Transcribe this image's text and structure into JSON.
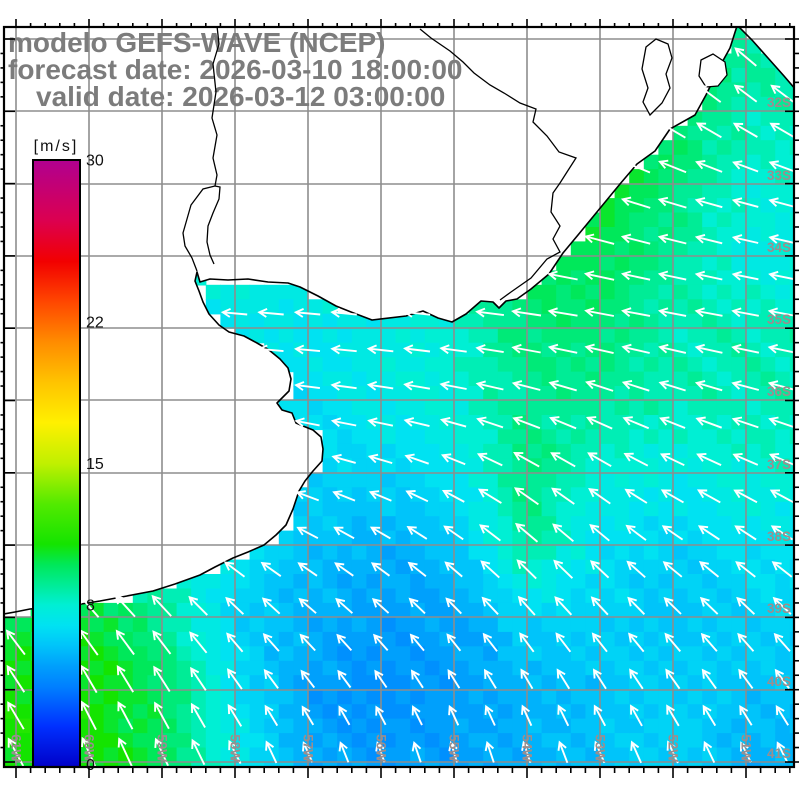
{
  "title": {
    "line1": "modelo GEFS-WAVE (NCEP)",
    "line2": "forecast date: 2026-03-10 18:00:00",
    "line3": "valid date: 2026-03-12 03:00:00"
  },
  "colorbar": {
    "unit": "[m/s]",
    "min": 0,
    "max": 30,
    "tick_labels": [
      {
        "text": "30",
        "value": 30
      },
      {
        "text": "22",
        "value": 22
      },
      {
        "text": "15",
        "value": 15
      },
      {
        "text": "8",
        "value": 8
      },
      {
        "text": "0",
        "value": 0
      }
    ],
    "stops": [
      {
        "v": 0,
        "c": "#0000C8"
      },
      {
        "v": 2,
        "c": "#0030FF"
      },
      {
        "v": 4,
        "c": "#0080FF"
      },
      {
        "v": 5,
        "c": "#00A0FC"
      },
      {
        "v": 6,
        "c": "#00C4FA"
      },
      {
        "v": 7,
        "c": "#00E2F2"
      },
      {
        "v": 8,
        "c": "#00EFD4"
      },
      {
        "v": 9,
        "c": "#00EC96"
      },
      {
        "v": 10,
        "c": "#00E85A"
      },
      {
        "v": 11,
        "c": "#14E400"
      },
      {
        "v": 13,
        "c": "#52EA00"
      },
      {
        "v": 15,
        "c": "#C0F000"
      },
      {
        "v": 17,
        "c": "#FFF000"
      },
      {
        "v": 19,
        "c": "#FFC400"
      },
      {
        "v": 21,
        "c": "#FF8C00"
      },
      {
        "v": 23,
        "c": "#FF4600"
      },
      {
        "v": 25,
        "c": "#F20000"
      },
      {
        "v": 27,
        "c": "#DC0050"
      },
      {
        "v": 30,
        "c": "#B00090"
      }
    ]
  },
  "grid": {
    "lon_lines_x": [
      16,
      89,
      162,
      235,
      308,
      381,
      454,
      527,
      600,
      673,
      746
    ],
    "lon_labels": [
      "61W",
      "60W",
      "59W",
      "58W",
      "57W",
      "56W",
      "55W",
      "54W",
      "53W",
      "52W",
      "51W"
    ],
    "lat_lines_y": [
      39,
      111,
      184,
      256,
      328,
      400,
      473,
      545,
      617,
      690,
      762
    ],
    "lat_labels": [
      "32S",
      "33S",
      "34S",
      "35S",
      "36S",
      "37S",
      "38S",
      "39S",
      "40S",
      "41S"
    ]
  },
  "wind_field": {
    "cols": 11,
    "rows": 11,
    "speeds_ms": [
      [
        10,
        10,
        10,
        10,
        10,
        10,
        9.5,
        9.5,
        10.5,
        10,
        9
      ],
      [
        10,
        10,
        10,
        10,
        10,
        10,
        9.5,
        10,
        11,
        10,
        8.5
      ],
      [
        10,
        10,
        10,
        10,
        10,
        9,
        9.5,
        11,
        10.5,
        9.5,
        8
      ],
      [
        9,
        9,
        8.5,
        8,
        8,
        8,
        8.5,
        10,
        10,
        9,
        7.5
      ],
      [
        8,
        8,
        7.2,
        7.2,
        7.2,
        7.5,
        8,
        9.5,
        9.5,
        8.5,
        8.5
      ],
      [
        7,
        7,
        7,
        7,
        7,
        7.5,
        8,
        9,
        9,
        8.5,
        8.5
      ],
      [
        7,
        7,
        7.5,
        7,
        6.5,
        6.5,
        7,
        9.5,
        8,
        7.5,
        8
      ],
      [
        8,
        8,
        8,
        7,
        6,
        5.5,
        6,
        9,
        7,
        6.5,
        7
      ],
      [
        10,
        10.5,
        9,
        6.5,
        5.5,
        5,
        5,
        6.5,
        6.5,
        6,
        6.5
      ],
      [
        11,
        11,
        10,
        7,
        5,
        4.5,
        5,
        5.5,
        6,
        6.5,
        6
      ],
      [
        11,
        11,
        10,
        7.5,
        5.5,
        5,
        5,
        5.5,
        6,
        6.5,
        5.5
      ]
    ],
    "dirs_deg": [
      [
        205,
        205,
        205,
        205,
        205,
        205,
        205,
        210,
        215,
        220,
        222
      ],
      [
        200,
        200,
        200,
        200,
        200,
        200,
        205,
        208,
        212,
        215,
        215
      ],
      [
        195,
        195,
        195,
        195,
        195,
        195,
        195,
        196,
        200,
        198,
        196
      ],
      [
        190,
        190,
        190,
        190,
        190,
        188,
        188,
        190,
        193,
        193,
        192
      ],
      [
        185,
        185,
        184,
        184,
        184,
        185,
        186,
        188,
        190,
        190,
        190
      ],
      [
        190,
        190,
        189,
        189,
        188,
        189,
        192,
        196,
        200,
        199,
        196
      ],
      [
        202,
        202,
        201,
        200,
        196,
        198,
        204,
        212,
        212,
        207,
        205
      ],
      [
        216,
        216,
        215,
        212,
        210,
        212,
        217,
        222,
        221,
        216,
        215
      ],
      [
        230,
        231,
        229,
        226,
        223,
        224,
        227,
        229,
        228,
        226,
        225
      ],
      [
        238,
        241,
        239,
        236,
        234,
        237,
        240,
        241,
        239,
        236,
        235
      ],
      [
        242,
        246,
        246,
        244,
        248,
        252,
        254,
        253,
        248,
        246,
        245
      ]
    ]
  },
  "geography": {
    "coastline": [
      [
        737,
        26
      ],
      [
        730,
        48
      ],
      [
        720,
        66
      ],
      [
        706,
        95
      ],
      [
        695,
        115
      ],
      [
        670,
        129
      ],
      [
        655,
        151
      ],
      [
        637,
        164
      ],
      [
        620,
        184
      ],
      [
        606,
        201
      ],
      [
        592,
        218
      ],
      [
        578,
        235
      ],
      [
        563,
        253
      ],
      [
        549,
        274
      ],
      [
        531,
        289
      ],
      [
        517,
        299
      ],
      [
        506,
        301
      ],
      [
        499,
        308
      ],
      [
        493,
        302
      ],
      [
        481,
        301
      ],
      [
        466,
        314
      ],
      [
        452,
        322
      ],
      [
        438,
        318
      ],
      [
        423,
        311
      ],
      [
        406,
        316
      ],
      [
        372,
        320
      ],
      [
        351,
        312
      ],
      [
        336,
        306
      ],
      [
        318,
        296
      ],
      [
        300,
        287
      ],
      [
        288,
        283
      ],
      [
        268,
        282
      ],
      [
        248,
        279
      ],
      [
        228,
        280
      ],
      [
        210,
        279
      ],
      [
        200,
        282
      ],
      [
        197,
        272
      ],
      [
        195,
        281
      ],
      [
        199,
        291
      ],
      [
        203,
        302
      ],
      [
        209,
        314
      ],
      [
        219,
        325
      ],
      [
        229,
        332
      ],
      [
        244,
        336
      ],
      [
        257,
        343
      ],
      [
        269,
        350
      ],
      [
        280,
        359
      ],
      [
        288,
        368
      ],
      [
        291,
        379
      ],
      [
        289,
        391
      ],
      [
        277,
        403
      ],
      [
        282,
        410
      ],
      [
        292,
        413
      ],
      [
        296,
        423
      ],
      [
        303,
        426
      ],
      [
        313,
        430
      ],
      [
        321,
        437
      ],
      [
        323,
        449
      ],
      [
        322,
        461
      ],
      [
        313,
        471
      ],
      [
        305,
        481
      ],
      [
        299,
        491
      ],
      [
        293,
        509
      ],
      [
        286,
        525
      ],
      [
        276,
        535
      ],
      [
        264,
        545
      ],
      [
        248,
        552
      ],
      [
        233,
        558
      ],
      [
        215,
        567
      ],
      [
        200,
        575
      ],
      [
        175,
        584
      ],
      [
        153,
        591
      ],
      [
        127,
        596
      ],
      [
        100,
        601
      ],
      [
        75,
        605
      ],
      [
        53,
        607
      ],
      [
        30,
        609
      ],
      [
        15,
        612
      ],
      [
        4,
        614
      ]
    ],
    "corner_strip": [
      [
        738,
        26
      ],
      [
        796,
        26
      ],
      [
        796,
        90
      ],
      [
        784,
        76
      ],
      [
        768,
        58
      ],
      [
        752,
        40
      ]
    ],
    "corner_diagonal": [
      [
        738,
        26
      ],
      [
        752,
        40
      ],
      [
        768,
        58
      ],
      [
        784,
        76
      ],
      [
        796,
        90
      ]
    ],
    "rivers": [
      [
        [
          217,
          26
        ],
        [
          219,
          44
        ],
        [
          213,
          64
        ],
        [
          216,
          92
        ],
        [
          212,
          118
        ],
        [
          217,
          135
        ],
        [
          213,
          158
        ],
        [
          217,
          175
        ],
        [
          215,
          186
        ],
        [
          203,
          189
        ],
        [
          191,
          205
        ],
        [
          187,
          219
        ],
        [
          183,
          233
        ],
        [
          185,
          246
        ],
        [
          192,
          258
        ],
        [
          197,
          271
        ]
      ],
      [
        [
          215,
          186
        ],
        [
          220,
          187
        ],
        [
          219,
          199
        ],
        [
          213,
          213
        ],
        [
          208,
          226
        ],
        [
          207,
          242
        ],
        [
          210,
          255
        ],
        [
          214,
          264
        ]
      ]
    ],
    "lagoon_line": [
      [
        420,
        29
      ],
      [
        431,
        38
      ],
      [
        450,
        51
      ],
      [
        463,
        62
      ],
      [
        474,
        73
      ],
      [
        490,
        85
      ],
      [
        504,
        93
      ],
      [
        520,
        103
      ],
      [
        536,
        109
      ],
      [
        533,
        122
      ],
      [
        547,
        136
      ],
      [
        559,
        152
      ],
      [
        576,
        158
      ],
      [
        567,
        172
      ],
      [
        560,
        183
      ],
      [
        553,
        193
      ],
      [
        551,
        212
      ],
      [
        560,
        226
      ],
      [
        553,
        239
      ],
      [
        560,
        252
      ],
      [
        547,
        259
      ],
      [
        531,
        278
      ],
      [
        511,
        292
      ],
      [
        500,
        300
      ]
    ],
    "lagoon_blobs": [
      [
        [
          646,
          47
        ],
        [
          656,
          39
        ],
        [
          668,
          44
        ],
        [
          672,
          58
        ],
        [
          666,
          74
        ],
        [
          670,
          88
        ],
        [
          662,
          103
        ],
        [
          650,
          115
        ],
        [
          643,
          102
        ],
        [
          648,
          88
        ],
        [
          642,
          69
        ]
      ],
      [
        [
          701,
          60
        ],
        [
          713,
          54
        ],
        [
          725,
          62
        ],
        [
          727,
          75
        ],
        [
          718,
          86
        ],
        [
          706,
          87
        ],
        [
          699,
          76
        ]
      ]
    ]
  },
  "style_colors": {
    "land": "#ffffff",
    "gridline": "#8d8d8d",
    "coastline": "#000000",
    "arrow": "#ffffff",
    "frame": "#000000"
  }
}
